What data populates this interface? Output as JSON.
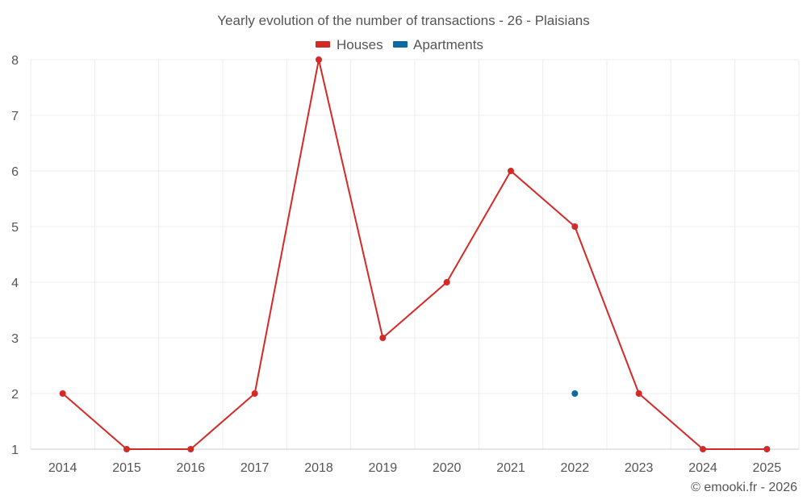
{
  "chart_data": {
    "type": "line",
    "title": "Yearly evolution of the number of transactions - 26 - Plaisians",
    "categories": [
      "2014",
      "2015",
      "2016",
      "2017",
      "2018",
      "2019",
      "2020",
      "2021",
      "2022",
      "2023",
      "2024",
      "2025"
    ],
    "series": [
      {
        "name": "Houses",
        "color": "#d42a27",
        "values": [
          2,
          1,
          1,
          2,
          8,
          3,
          4,
          6,
          5,
          2,
          1,
          1
        ]
      },
      {
        "name": "Apartments",
        "color": "#0a6aa1",
        "values": [
          null,
          null,
          null,
          null,
          null,
          null,
          null,
          null,
          2,
          null,
          null,
          null
        ]
      }
    ],
    "ylim": [
      1,
      8
    ],
    "yticks": [
      "1",
      "2",
      "3",
      "4",
      "5",
      "6",
      "7",
      "8"
    ],
    "grid": true,
    "legend_position": "top-center"
  },
  "credit": "© emooki.fr - 2026"
}
